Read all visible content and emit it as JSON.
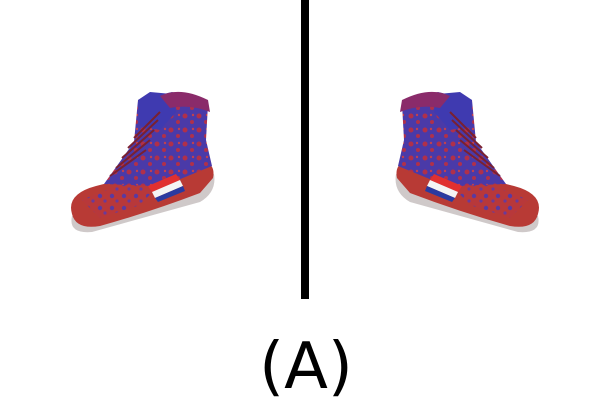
{
  "label": "(A)"
}
